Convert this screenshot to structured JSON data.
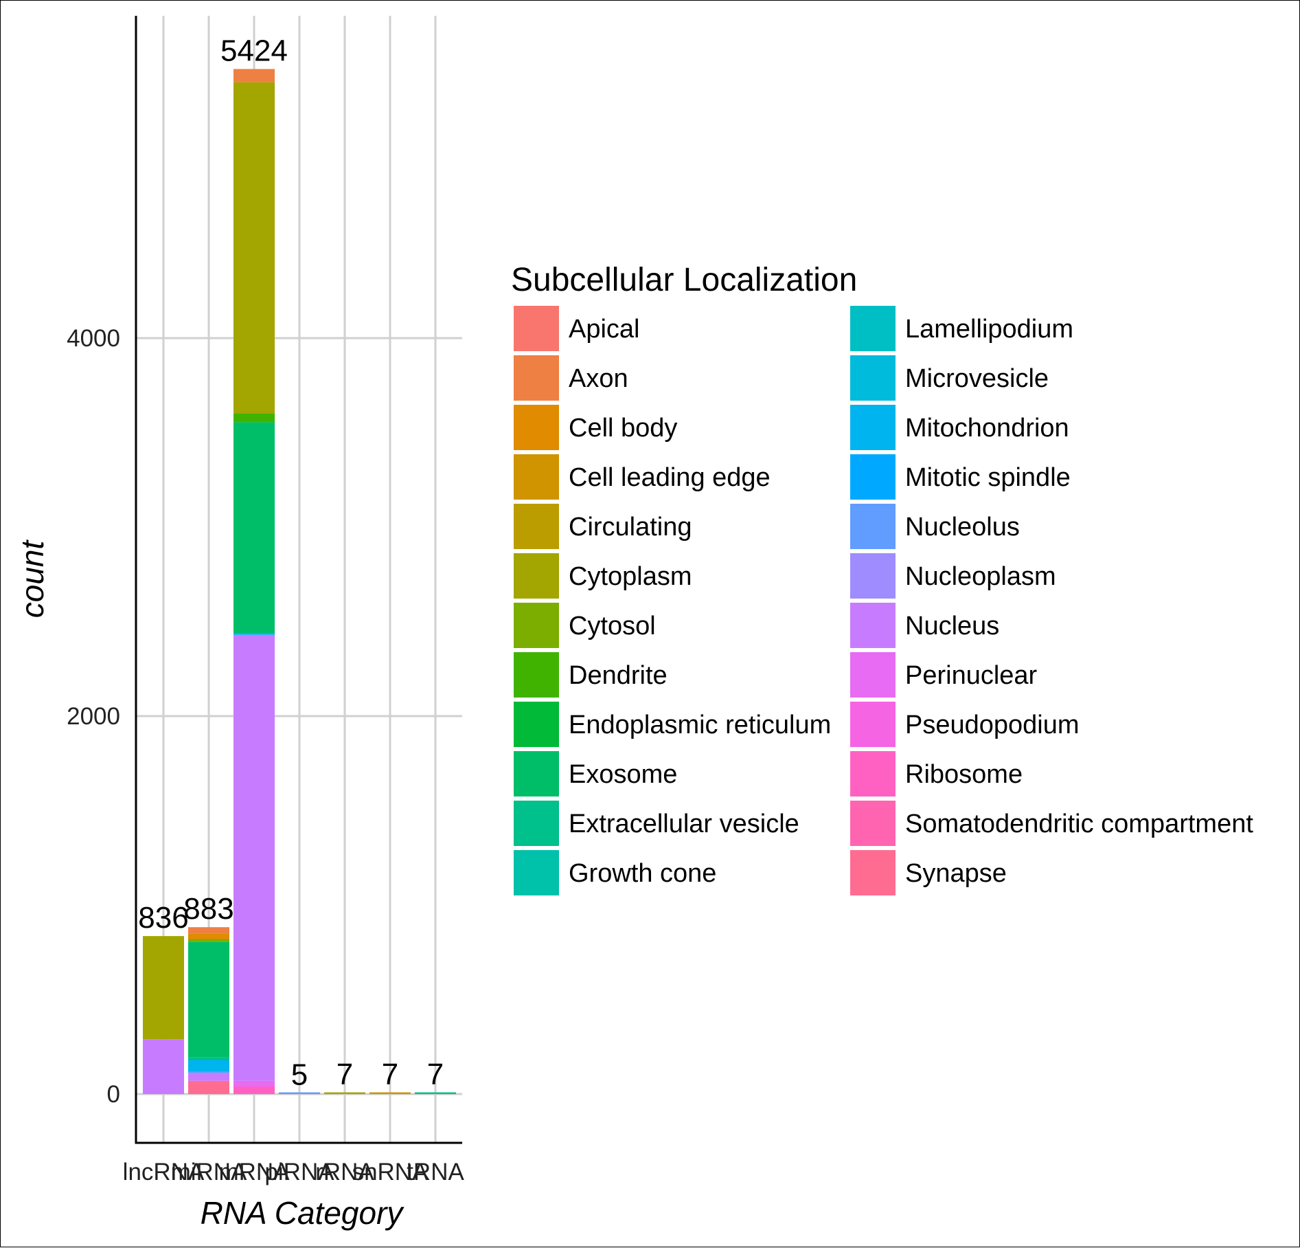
{
  "chart_data": {
    "type": "bar",
    "stacked": true,
    "xlabel": "RNA Category",
    "ylabel": "count",
    "categories": [
      "lncRNA",
      "miRNA",
      "mRNA",
      "piRNA",
      "rRNA",
      "snRNA",
      "tRNA"
    ],
    "totals": [
      836,
      883,
      5424,
      5,
      7,
      7,
      7
    ],
    "ylim": [
      -250,
      5800
    ],
    "yticks": [
      0,
      2000,
      4000
    ],
    "grid": true,
    "legend": {
      "title": "Subcellular Localization",
      "placement": "right",
      "entries": [
        {
          "name": "Apical",
          "color": "#F8766D"
        },
        {
          "name": "Axon",
          "color": "#EE8043"
        },
        {
          "name": "Cell body",
          "color": "#E08B00"
        },
        {
          "name": "Cell leading edge",
          "color": "#CF9400"
        },
        {
          "name": "Circulating",
          "color": "#BB9D00"
        },
        {
          "name": "Cytoplasm",
          "color": "#A3A500"
        },
        {
          "name": "Cytosol",
          "color": "#7CAE00"
        },
        {
          "name": "Dendrite",
          "color": "#3FB300"
        },
        {
          "name": "Endoplasmic reticulum",
          "color": "#00BA38"
        },
        {
          "name": "Exosome",
          "color": "#00BE67"
        },
        {
          "name": "Extracellular vesicle",
          "color": "#00C08B"
        },
        {
          "name": "Growth cone",
          "color": "#00C1A9"
        },
        {
          "name": "Lamellipodium",
          "color": "#00BFC4"
        },
        {
          "name": "Microvesicle",
          "color": "#00BBDC"
        },
        {
          "name": "Mitochondrion",
          "color": "#00B4EF"
        },
        {
          "name": "Mitotic spindle",
          "color": "#00A9FF"
        },
        {
          "name": "Nucleolus",
          "color": "#619CFF"
        },
        {
          "name": "Nucleoplasm",
          "color": "#9F8CFF"
        },
        {
          "name": "Nucleus",
          "color": "#C77CFF"
        },
        {
          "name": "Perinuclear",
          "color": "#E76BF3"
        },
        {
          "name": "Pseudopodium",
          "color": "#F564E3"
        },
        {
          "name": "Ribosome",
          "color": "#FF61C3"
        },
        {
          "name": "Somatodendritic compartment",
          "color": "#FF64B0"
        },
        {
          "name": "Synapse",
          "color": "#FF6C91"
        }
      ]
    },
    "series": [
      {
        "name": "Synapse",
        "values": [
          0,
          70,
          0,
          0,
          0,
          0,
          0
        ]
      },
      {
        "name": "Ribosome",
        "values": [
          0,
          0,
          40,
          0,
          0,
          0,
          0
        ]
      },
      {
        "name": "Perinuclear",
        "values": [
          0,
          0,
          30,
          0,
          0,
          0,
          0
        ]
      },
      {
        "name": "Nucleus",
        "values": [
          290,
          40,
          2360,
          0,
          0,
          0,
          0
        ]
      },
      {
        "name": "Nucleolus",
        "values": [
          0,
          10,
          0,
          5,
          0,
          0,
          0
        ]
      },
      {
        "name": "Mitochondrion",
        "values": [
          0,
          60,
          10,
          0,
          0,
          0,
          0
        ]
      },
      {
        "name": "Extracellular vesicle",
        "values": [
          0,
          15,
          0,
          0,
          0,
          0,
          7
        ]
      },
      {
        "name": "Exosome",
        "values": [
          0,
          610,
          1115,
          0,
          0,
          0,
          0
        ]
      },
      {
        "name": "Dendrite",
        "values": [
          0,
          0,
          45,
          0,
          0,
          0,
          0
        ]
      },
      {
        "name": "Cytosol",
        "values": [
          0,
          15,
          0,
          0,
          0,
          0,
          0
        ]
      },
      {
        "name": "Cytoplasm",
        "values": [
          546,
          0,
          1754,
          0,
          7,
          0,
          0
        ]
      },
      {
        "name": "Cell body",
        "values": [
          0,
          30,
          0,
          0,
          0,
          0,
          0
        ]
      },
      {
        "name": "Cell leading edge",
        "values": [
          0,
          0,
          0,
          0,
          0,
          7,
          0
        ]
      },
      {
        "name": "Axon",
        "values": [
          0,
          33,
          70,
          0,
          0,
          0,
          0
        ]
      }
    ]
  }
}
